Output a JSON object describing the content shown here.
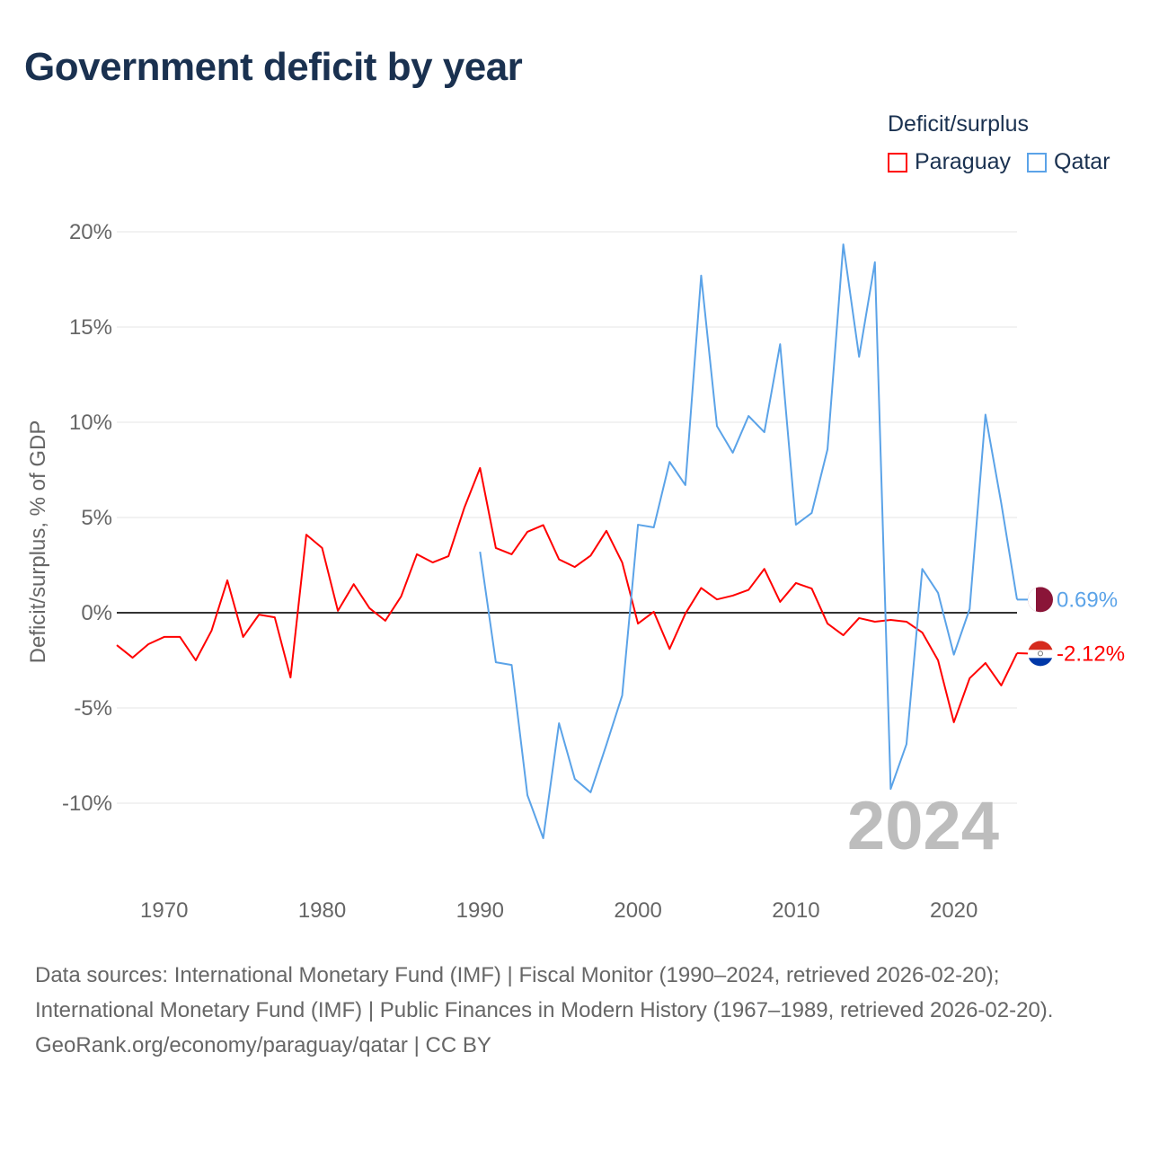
{
  "title": "Government deficit by year",
  "legend": {
    "title": "Deficit/surplus",
    "items": [
      {
        "name": "Paraguay",
        "color": "#ff0000"
      },
      {
        "name": "Qatar",
        "color": "#5ba3e8"
      }
    ]
  },
  "source": {
    "line1": "Data sources: International Monetary Fund (IMF) | Fiscal Monitor (1990–2024, retrieved 2026-02-20); International Monetary Fund (IMF) | Public Finances in Modern History (1967–1989, retrieved 2026-02-20).",
    "line2": "GeoRank.org/economy/paraguay/qatar | CC BY"
  },
  "chart_data": {
    "type": "line",
    "title": "Government deficit by year",
    "ylabel": "Deficit/surplus, % of GDP",
    "xlabel": "",
    "xlim": [
      1967,
      2024
    ],
    "ylim": [
      -13,
      21
    ],
    "yticks": [
      20,
      15,
      10,
      5,
      0,
      -5,
      -10
    ],
    "ytick_labels": [
      "20%",
      "15%",
      "10%",
      "5%",
      "0%",
      "-5%",
      "-10%"
    ],
    "xticks": [
      1970,
      1980,
      1990,
      2000,
      2010,
      2020
    ],
    "xtick_labels": [
      "1970",
      "1980",
      "1990",
      "2000",
      "2010",
      "2020"
    ],
    "year_label": "2024",
    "series": [
      {
        "name": "Paraguay",
        "color": "#ff0000",
        "start": 1967,
        "end_label": "-2.12%",
        "values": [
          -1.7,
          -2.36,
          -1.65,
          -1.27,
          -1.27,
          -2.5,
          -0.94,
          1.7,
          -1.27,
          -0.1,
          -0.24,
          -3.4,
          4.1,
          3.4,
          0.1,
          1.5,
          0.24,
          -0.42,
          0.85,
          3.07,
          2.64,
          2.97,
          5.5,
          7.6,
          3.4,
          3.07,
          4.25,
          4.6,
          2.8,
          2.4,
          3.0,
          4.3,
          2.64,
          -0.57,
          0.05,
          -1.9,
          -0.05,
          1.3,
          0.7,
          0.9,
          1.2,
          2.3,
          0.57,
          1.56,
          1.27,
          -0.57,
          -1.18,
          -0.28,
          -0.47,
          -0.38,
          -0.47,
          -1.04,
          -2.5,
          -5.75,
          -3.44,
          -2.64,
          -3.82,
          -2.12
        ]
      },
      {
        "name": "Qatar",
        "color": "#5ba3e8",
        "start": 1990,
        "end_label": "0.69%",
        "values": [
          3.2,
          -2.6,
          -2.74,
          -9.58,
          -11.84,
          -5.8,
          -8.73,
          -9.43,
          -6.93,
          -4.34,
          4.62,
          4.48,
          7.92,
          6.7,
          17.7,
          9.8,
          8.4,
          10.33,
          9.48,
          14.1,
          4.62,
          5.24,
          8.58,
          19.34,
          13.44,
          18.4,
          -9.25,
          -6.9,
          2.3,
          1.04,
          -2.2,
          0.2,
          10.4,
          5.75,
          0.69
        ]
      }
    ]
  }
}
